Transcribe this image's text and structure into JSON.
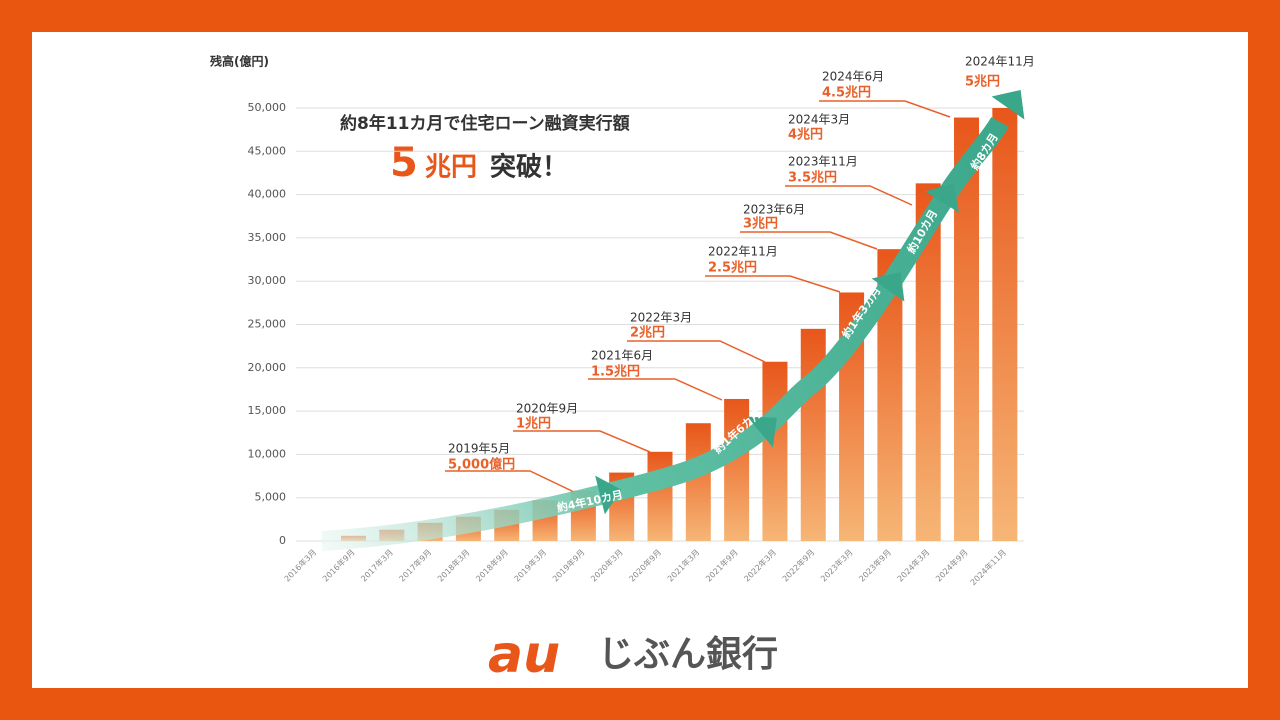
{
  "chart_data": {
    "type": "bar",
    "y_axis_label": "残高(億円)",
    "heading": {
      "line1": "約8年11カ月で住宅ローン融資実行額",
      "num": "5",
      "unit": "兆円",
      "rest": "突破！"
    },
    "categories": [
      "2016年3月",
      "2016年9月",
      "2017年3月",
      "2017年9月",
      "2018年3月",
      "2018年9月",
      "2019年3月",
      "2019年9月",
      "2020年3月",
      "2020年9月",
      "2021年3月",
      "2021年9月",
      "2022年3月",
      "2022年9月",
      "2023年3月",
      "2023年9月",
      "2024年3月",
      "2024年9月",
      "2024年11月"
    ],
    "values": [
      0,
      600,
      1300,
      2100,
      2800,
      3600,
      4700,
      5800,
      7900,
      10300,
      13600,
      16400,
      20700,
      24500,
      28700,
      33700,
      41300,
      48900,
      50000
    ],
    "color": "#e8561a",
    "ylim": [
      0,
      50000
    ],
    "yticks": [
      0,
      {
        "value": 5000,
        "label": "5,000"
      },
      {
        "value": 10000,
        "label": "10,000"
      },
      {
        "value": 15000,
        "label": "15,000"
      },
      {
        "value": 20000,
        "label": "20,000"
      },
      {
        "value": 25000,
        "label": "25,000"
      },
      {
        "value": 30000,
        "label": "30,000"
      },
      {
        "value": 35000,
        "label": "35,000"
      },
      {
        "value": 40000,
        "label": "40,000"
      },
      {
        "value": 45000,
        "label": "45,000"
      },
      {
        "value": 50000,
        "label": "50,000"
      }
    ],
    "grid": true,
    "annotations": [
      {
        "date": "2019年5月",
        "amount": "5,000億円"
      },
      {
        "date": "2020年9月",
        "amount": "1兆円"
      },
      {
        "date": "2021年6月",
        "amount": "1.5兆円"
      },
      {
        "date": "2022年3月",
        "amount": "2兆円"
      },
      {
        "date": "2022年11月",
        "amount": "2.5兆円"
      },
      {
        "date": "2023年6月",
        "amount": "3兆円"
      },
      {
        "date": "2023年11月",
        "amount": "3.5兆円"
      },
      {
        "date": "2024年3月",
        "amount": "4兆円"
      },
      {
        "date": "2024年6月",
        "amount": "4.5兆円"
      },
      {
        "date": "2024年11月",
        "amount": "5兆円"
      }
    ],
    "periods": [
      "約4年10カ月",
      "約1年6カ月",
      "約1年3カ月",
      "約10カ月",
      "約8カ月"
    ],
    "logo": {
      "mark": "au",
      "name": "じぶん銀行"
    }
  }
}
